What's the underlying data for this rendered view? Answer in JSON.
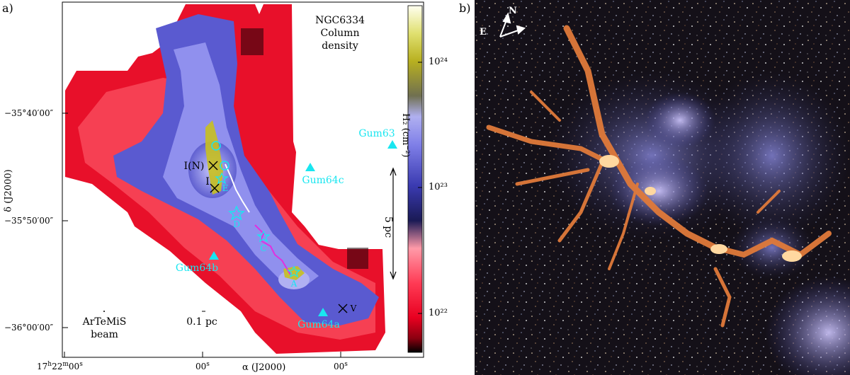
{
  "panel_a": {
    "label": "a)",
    "title_lines": [
      "NGC6334",
      "Column",
      "density"
    ],
    "y_axis_title": "δ (J2000)",
    "x_axis_title": "α (J2000)",
    "y_ticks": [
      "−35°40′00″",
      "−35°50′00″",
      "−36°00′00″"
    ],
    "x_ticks": [
      "17h22m00s",
      "00s",
      "00s"
    ],
    "x_tick_prefix": "17",
    "x_tick_h": "h",
    "x_tick_mid": "22",
    "x_tick_m": "m",
    "x_tick_sec": "00",
    "x_tick_s": "s",
    "colorbar_title": "H₂ (cm⁻²)",
    "colorbar_ticks": [
      "10²⁴",
      "10²³",
      "10²²"
    ],
    "scale_bar_label": "5 pc",
    "beam_label_lines": [
      "ArTeMiS",
      "beam"
    ],
    "small_scale_label": "0.1 pc",
    "sources": [
      {
        "name": "I(N)"
      },
      {
        "name": "I"
      },
      {
        "name": "E"
      },
      {
        "name": "D"
      },
      {
        "name": "C"
      },
      {
        "name": "A"
      },
      {
        "name": "V"
      }
    ],
    "hii_regions": [
      "Gum63",
      "Gum64c",
      "Gum64b",
      "Gum64a"
    ],
    "colors": {
      "highlight": "#19e6f0",
      "filament": "#e030e0",
      "ridge": "#ffffff"
    }
  },
  "panel_b": {
    "label": "b)",
    "compass_n": "N",
    "compass_e": "E"
  }
}
